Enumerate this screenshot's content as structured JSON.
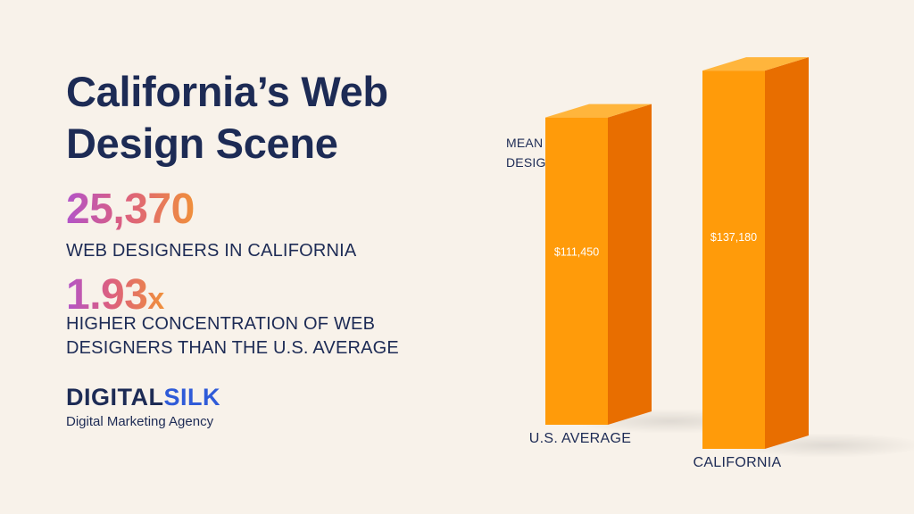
{
  "title": "California’s Web Design Scene",
  "stats": [
    {
      "value": "25,370",
      "suffix": "",
      "label": "WEB DESIGNERS IN CALIFORNIA"
    },
    {
      "value": "1.93",
      "suffix": "x",
      "label": "HIGHER CONCENTRATION OF WEB DESIGNERS THAN THE U.S. AVERAGE"
    }
  ],
  "logo": {
    "part1": "DIGITAL",
    "part2": "SILK",
    "tagline": "Digital Marketing Agency"
  },
  "colors": {
    "title": "#1d2b55",
    "bar_front": "#ff9b0a",
    "bar_side": "#e86e00",
    "bar_top": "#ffb53c",
    "logo_accent": "#2f5bd8"
  },
  "chart_data": {
    "type": "bar",
    "title": "MEAN ANNUAL WEB DESIGNER SALARY",
    "categories": [
      "U.S. AVERAGE",
      "CALIFORNIA"
    ],
    "values": [
      111450,
      137180
    ],
    "value_labels": [
      "$111,450",
      "$137,180"
    ],
    "style": "3d",
    "grid": false
  }
}
